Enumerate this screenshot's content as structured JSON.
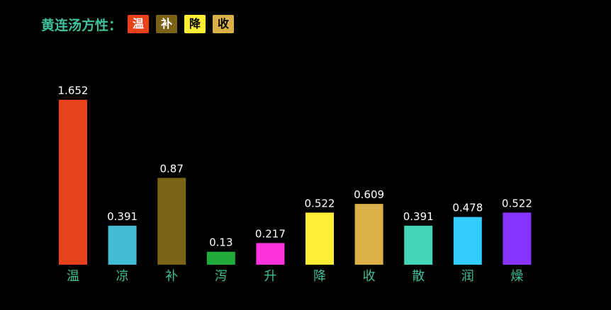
{
  "header": {
    "title": "黄连汤方性：",
    "tags": [
      {
        "label": "温",
        "color": "#e8421a"
      },
      {
        "label": "补",
        "color": "#7a6216"
      },
      {
        "label": "降",
        "color": "#ffee33"
      },
      {
        "label": "收",
        "color": "#d9b148"
      }
    ]
  },
  "chart_data": {
    "type": "bar",
    "title": "",
    "xlabel": "",
    "ylabel": "",
    "ylim": [
      0,
      1.652
    ],
    "grid": false,
    "categories": [
      "温",
      "凉",
      "补",
      "泻",
      "升",
      "降",
      "收",
      "散",
      "润",
      "燥"
    ],
    "values": [
      1.652,
      0.391,
      0.87,
      0.13,
      0.217,
      0.522,
      0.609,
      0.391,
      0.478,
      0.522
    ],
    "colors": [
      "#e8421a",
      "#45bcd6",
      "#7a6216",
      "#1fac3b",
      "#ff33dd",
      "#ffee33",
      "#d9b148",
      "#44d6b6",
      "#33ccff",
      "#8833ff"
    ],
    "label_color": "#ffffff",
    "category_color": "#3fbf9a"
  }
}
